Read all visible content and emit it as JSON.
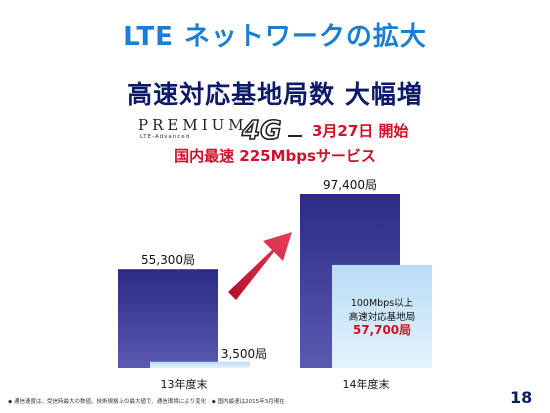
{
  "title": "LTE ネットワークの拡大",
  "subtitle": "高速対応基地局数 大幅増",
  "brand": {
    "premium": "PREMIUM",
    "lte_advanced": "LTE-Advanced",
    "logo": "4G",
    "launch": "3月27日 開始"
  },
  "speed_note": "国内最速 225Mbpsサービス",
  "page_number": "18",
  "footnote": "◆ 通信速度は、受信時最大の数値。技術規格上の最大値で、通信環境により変化　◆ 国内最速は2015年3月現在",
  "colors": {
    "title": "#1a7fd4",
    "subtitle": "#0d1a6a",
    "accent_red": "#d0102a",
    "bar_total": "#3a3a96",
    "bar_highspeed": "#c9e6f7"
  },
  "chart_data": {
    "type": "bar",
    "categories": [
      "13年度末",
      "14年度末"
    ],
    "series": [
      {
        "name": "",
        "values": [
          55300,
          97400
        ],
        "labels": [
          "55,300局",
          "97,400局"
        ]
      },
      {
        "name": "",
        "values": [
          3500,
          57700
        ],
        "labels": [
          "3,500局",
          "57,700局"
        ]
      }
    ],
    "annotation": [
      "100Mbps以上",
      "高速対応基地局"
    ],
    "ylim": [
      0,
      100000
    ],
    "grid": false,
    "legend": "none",
    "arrow": "up-right"
  }
}
